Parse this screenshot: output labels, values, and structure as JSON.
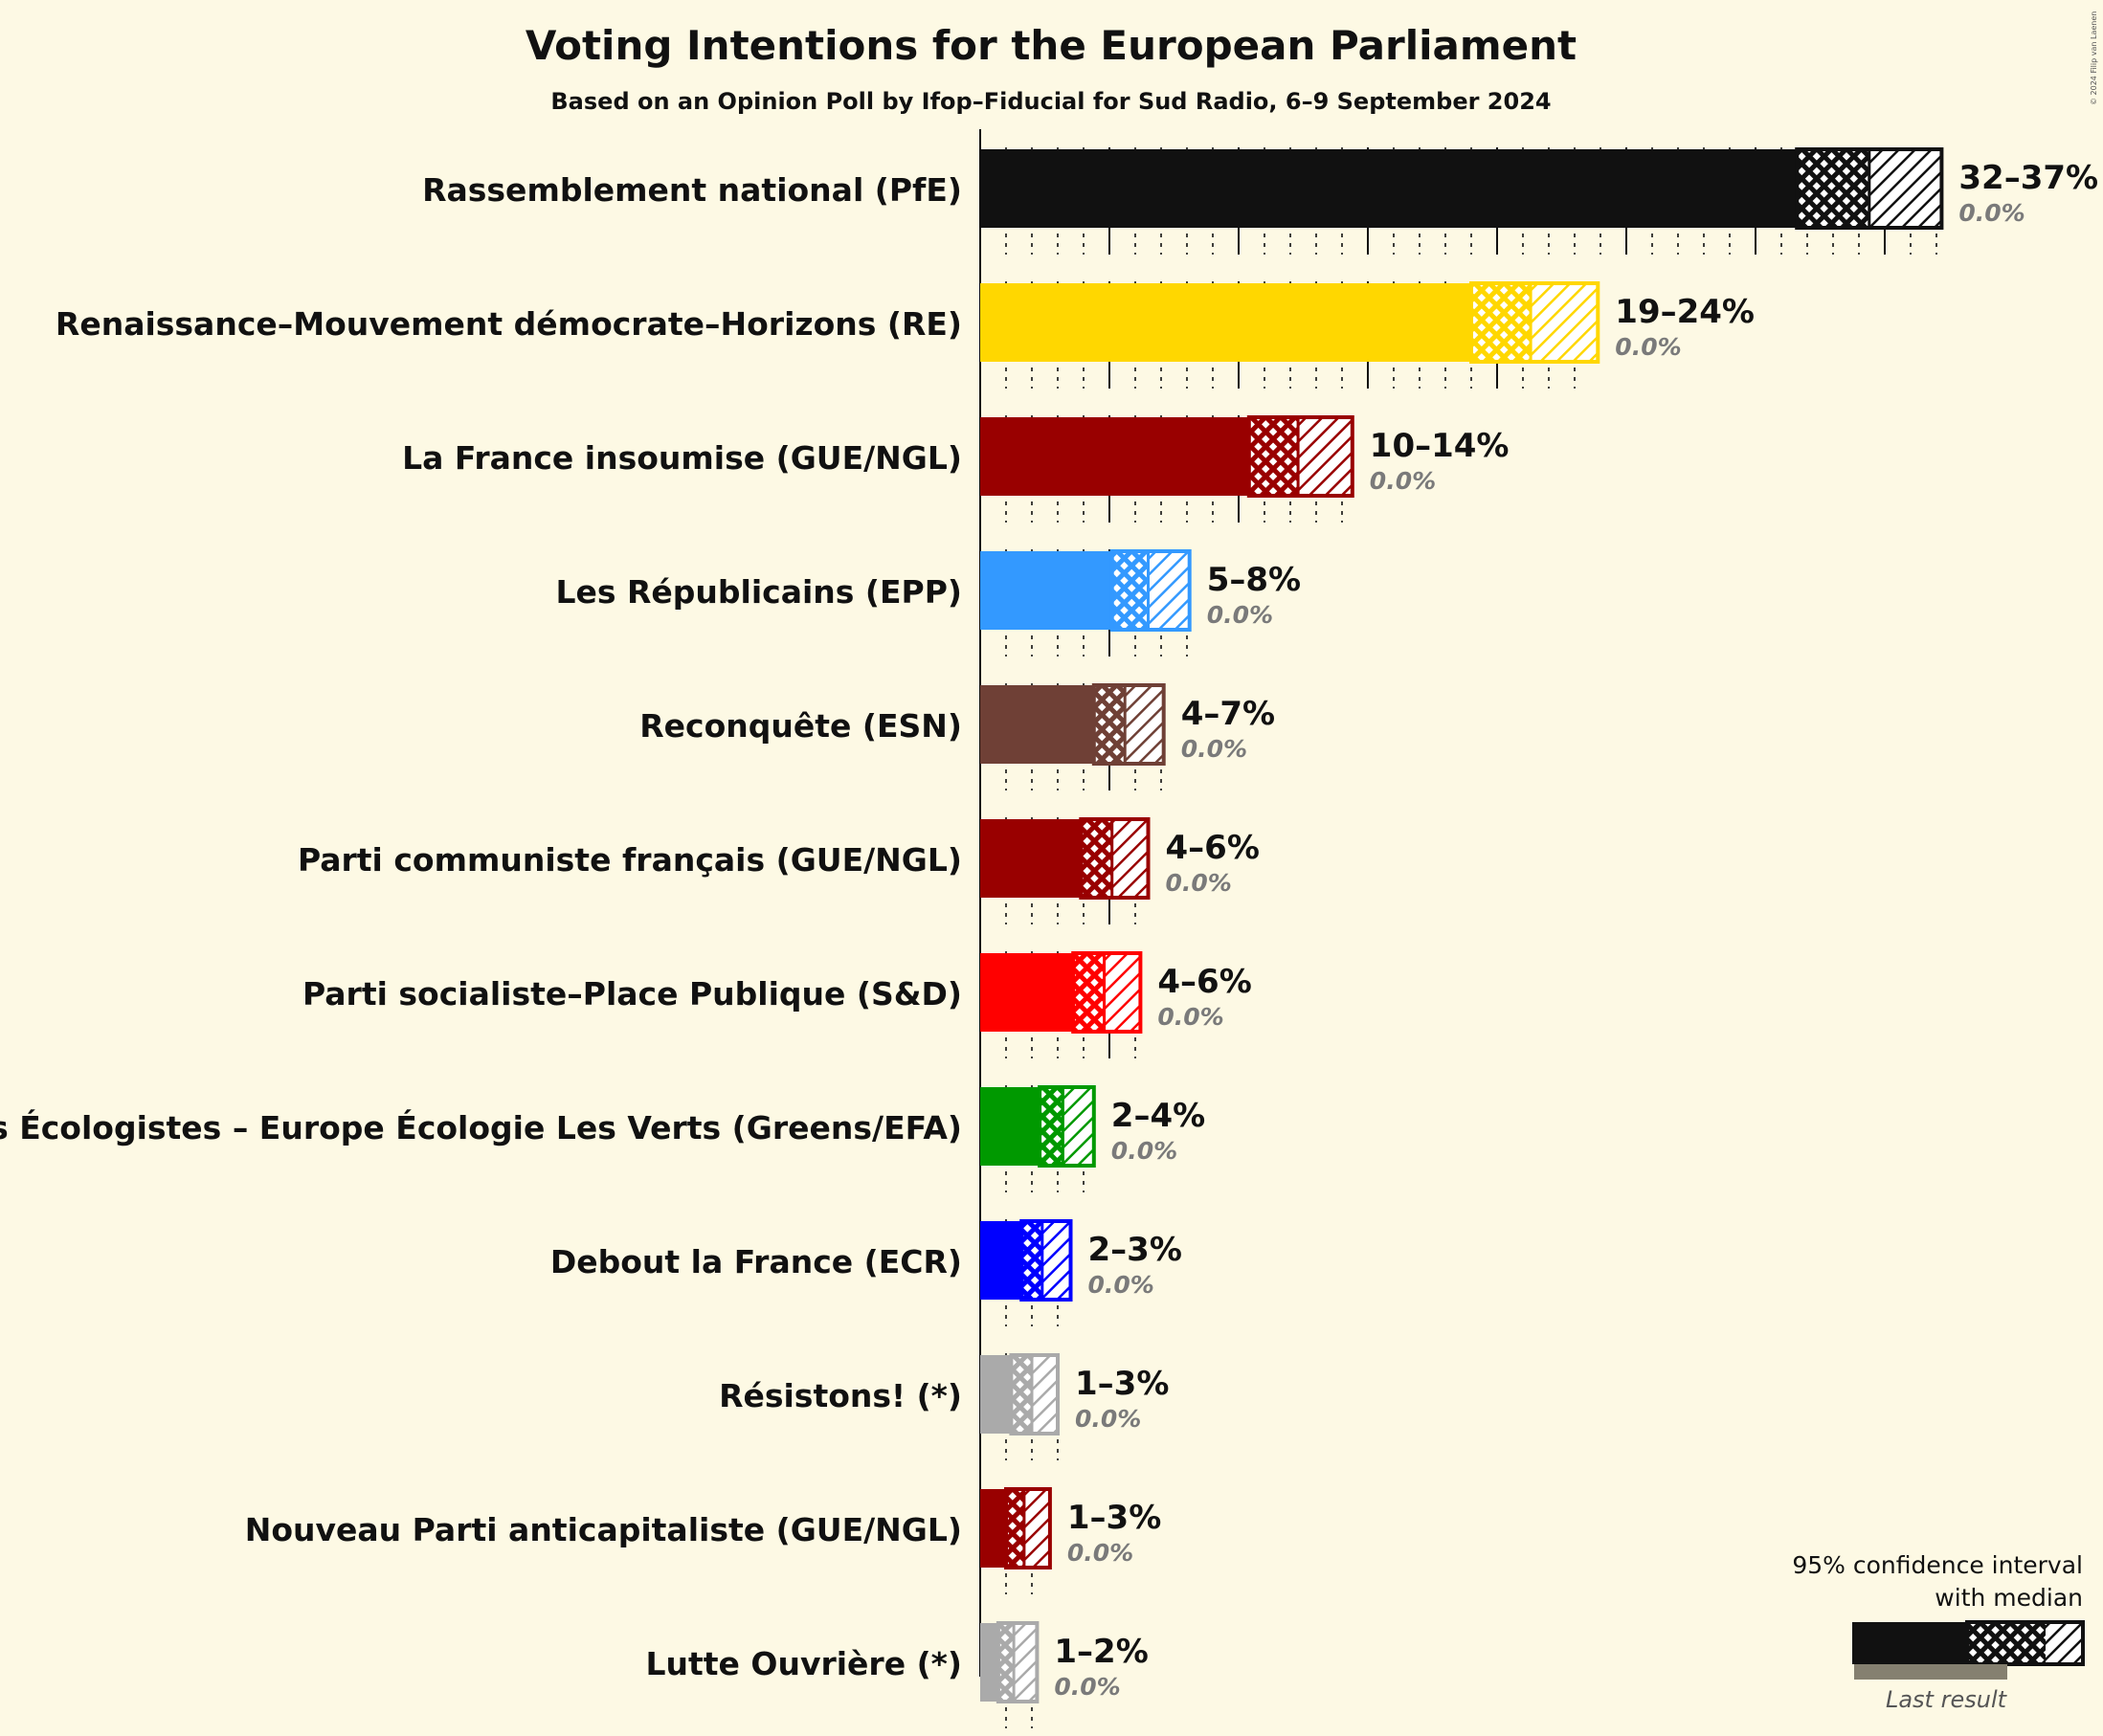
{
  "title": "Voting Intentions for the European Parliament",
  "subtitle": "Based on an Opinion Poll by Ifop–Fiducial for Sud Radio, 6–9 September 2024",
  "copyright": "© 2024 Filip van Laenen",
  "legend": {
    "line1": "95% confidence interval",
    "line2": "with median",
    "last_result": "Last result"
  },
  "chart_data": {
    "type": "bar",
    "orientation": "horizontal",
    "title": "Voting Intentions for the European Parliament",
    "subtitle": "Based on an Opinion Poll by Ifop–Fiducial for Sud Radio, 6–9 September 2024",
    "xlim": [
      0,
      37
    ],
    "series": [
      {
        "party": "Rassemblement national (PfE)",
        "color": "#111111",
        "low": 31.6,
        "median": 34.4,
        "high": 37.2,
        "range_label": "32–37%",
        "last_label": "0.0%"
      },
      {
        "party": "Renaissance–Mouvement démocrate–Horizons (RE)",
        "color": "#FFD700",
        "low": 19.0,
        "median": 21.3,
        "high": 23.9,
        "range_label": "19–24%",
        "last_label": "0.0%"
      },
      {
        "party": "La France insoumise (GUE/NGL)",
        "color": "#990000",
        "low": 10.4,
        "median": 12.3,
        "high": 14.4,
        "range_label": "10–14%",
        "last_label": "0.0%"
      },
      {
        "party": "Les Républicains (EPP)",
        "color": "#3399FF",
        "low": 5.1,
        "median": 6.5,
        "high": 8.1,
        "range_label": "5–8%",
        "last_label": "0.0%"
      },
      {
        "party": "Reconquête (ESN)",
        "color": "#6F4036",
        "low": 4.4,
        "median": 5.6,
        "high": 7.1,
        "range_label": "4–7%",
        "last_label": "0.0%"
      },
      {
        "party": "Parti communiste français (GUE/NGL)",
        "color": "#990000",
        "low": 3.9,
        "median": 5.1,
        "high": 6.5,
        "range_label": "4–6%",
        "last_label": "0.0%"
      },
      {
        "party": "Parti socialiste–Place Publique (S&D)",
        "color": "#FF0000",
        "low": 3.6,
        "median": 4.8,
        "high": 6.2,
        "range_label": "4–6%",
        "last_label": "0.0%"
      },
      {
        "party": "Les Écologistes – Europe Écologie Les Verts (Greens/EFA)",
        "color": "#009900",
        "low": 2.3,
        "median": 3.2,
        "high": 4.4,
        "range_label": "2–4%",
        "last_label": "0.0%"
      },
      {
        "party": "Debout la France (ECR)",
        "color": "#0000FF",
        "low": 1.6,
        "median": 2.4,
        "high": 3.5,
        "range_label": "2–3%",
        "last_label": "0.0%"
      },
      {
        "party": "Résistons! (*)",
        "color": "#AAAAAA",
        "low": 1.2,
        "median": 2.0,
        "high": 3.0,
        "range_label": "1–3%",
        "last_label": "0.0%"
      },
      {
        "party": "Nouveau Parti anticapitaliste (GUE/NGL)",
        "color": "#990000",
        "low": 1.0,
        "median": 1.7,
        "high": 2.7,
        "range_label": "1–3%",
        "last_label": "0.0%"
      },
      {
        "party": "Lutte Ouvrière (*)",
        "color": "#AAAAAA",
        "low": 0.7,
        "median": 1.3,
        "high": 2.2,
        "range_label": "1–2%",
        "last_label": "0.0%"
      }
    ]
  }
}
